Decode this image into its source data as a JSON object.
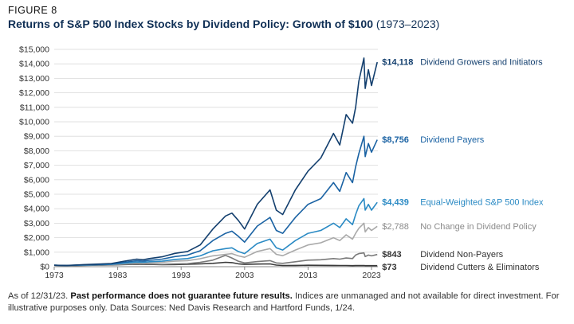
{
  "figure_label": "FIGURE 8",
  "title_main": "Returns of S&P 500 Index Stocks by Dividend Policy: Growth of $100",
  "title_sub": "(1973–2023)",
  "footnote": {
    "lead": "As of 12/31/23.",
    "bold": "Past performance does not guarantee future results.",
    "rest": "Indices are unmanaged and not available for direct investment. For illustrative purposes only. Data Sources: Ned Davis Research and Hartford Funds, 1/24."
  },
  "chart_data": {
    "type": "line",
    "title": "Returns of S&P 500 Index Stocks by Dividend Policy: Growth of $100 (1973–2023)",
    "xlabel": "",
    "ylabel": "",
    "xlim": [
      1973,
      2024
    ],
    "ylim": [
      0,
      15000
    ],
    "x_ticks": [
      "1973",
      "1983",
      "1993",
      "2003",
      "2013",
      "2023"
    ],
    "y_ticks": [
      "$0",
      "$1,000",
      "$2,000",
      "$3,000",
      "$4,000",
      "$5,000",
      "$6,000",
      "$7,000",
      "$8,000",
      "$9,000",
      "$10,000",
      "$11,000",
      "$12,000",
      "$13,000",
      "$14,000",
      "$15,000"
    ],
    "x": [
      1973,
      1975,
      1978,
      1980,
      1982,
      1984,
      1986,
      1987,
      1988,
      1990,
      1992,
      1994,
      1996,
      1998,
      2000,
      2001,
      2002,
      2003,
      2005,
      2007,
      2008,
      2009,
      2011,
      2013,
      2015,
      2017,
      2018,
      2019,
      2020,
      2020.5,
      2021,
      2021.8,
      2022,
      2022.5,
      2023,
      2023.9
    ],
    "series": [
      {
        "name": "Dividend Growers and Initiators",
        "end_label": "$14,118",
        "color": "#133f6e",
        "values": [
          100,
          90,
          150,
          180,
          220,
          380,
          520,
          480,
          560,
          680,
          920,
          1050,
          1500,
          2600,
          3500,
          3700,
          3200,
          2600,
          4300,
          5300,
          3900,
          3600,
          5300,
          6600,
          7500,
          9200,
          8400,
          10500,
          9900,
          11000,
          12800,
          14400,
          12300,
          13600,
          12500,
          14118
        ]
      },
      {
        "name": "Dividend Payers",
        "end_label": "$8,756",
        "color": "#1a62a3",
        "values": [
          100,
          85,
          130,
          155,
          185,
          300,
          410,
          380,
          440,
          520,
          700,
          800,
          1100,
          1800,
          2300,
          2450,
          2100,
          1700,
          2800,
          3400,
          2500,
          2300,
          3400,
          4300,
          4700,
          5800,
          5200,
          6500,
          5800,
          6900,
          7800,
          9000,
          7600,
          8500,
          7900,
          8756
        ]
      },
      {
        "name": "Equal-Weighted S&P 500 Index",
        "end_label": "$4,439",
        "color": "#2a8ac4",
        "values": [
          100,
          80,
          115,
          135,
          160,
          240,
          320,
          300,
          340,
          380,
          500,
          560,
          750,
          1100,
          1250,
          1300,
          1050,
          900,
          1600,
          1900,
          1300,
          1150,
          1800,
          2300,
          2500,
          3000,
          2700,
          3300,
          2900,
          3600,
          4200,
          4700,
          3900,
          4300,
          3900,
          4439
        ]
      },
      {
        "name": "No Change in Dividend Policy",
        "end_label": "$2,788",
        "color": "#a9a9a9",
        "values": [
          100,
          80,
          110,
          125,
          150,
          210,
          270,
          250,
          280,
          300,
          380,
          420,
          550,
          750,
          850,
          900,
          750,
          650,
          1050,
          1250,
          850,
          760,
          1150,
          1500,
          1650,
          2000,
          1800,
          2200,
          1900,
          2300,
          2650,
          3000,
          2400,
          2700,
          2500,
          2788
        ]
      },
      {
        "name": "Dividend Non-Payers",
        "end_label": "$843",
        "color": "#7a7a7a",
        "values": [
          100,
          70,
          100,
          110,
          130,
          160,
          190,
          170,
          180,
          160,
          190,
          210,
          300,
          450,
          780,
          600,
          380,
          260,
          350,
          420,
          260,
          230,
          340,
          450,
          480,
          560,
          520,
          600,
          560,
          800,
          900,
          950,
          700,
          800,
          750,
          843
        ]
      },
      {
        "name": "Dividend Cutters & Eliminators",
        "end_label": "$73",
        "color": "#3a3a3a",
        "values": [
          100,
          70,
          95,
          105,
          120,
          150,
          170,
          155,
          160,
          140,
          150,
          165,
          190,
          230,
          300,
          280,
          200,
          160,
          180,
          190,
          110,
          80,
          90,
          100,
          95,
          90,
          85,
          85,
          70,
          75,
          78,
          80,
          70,
          74,
          70,
          73
        ]
      }
    ]
  }
}
